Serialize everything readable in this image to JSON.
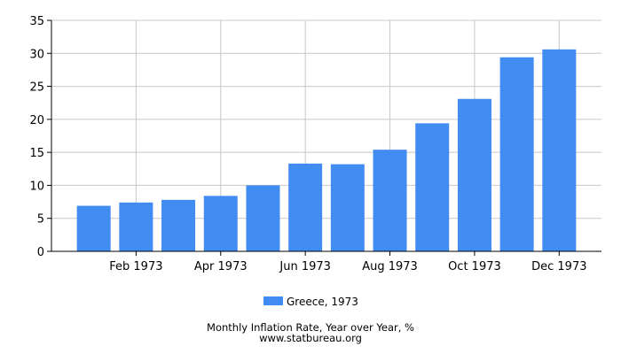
{
  "chart_data": {
    "type": "bar",
    "categories": [
      "Jan 1973",
      "Feb 1973",
      "Mar 1973",
      "Apr 1973",
      "May 1973",
      "Jun 1973",
      "Jul 1973",
      "Aug 1973",
      "Sep 1973",
      "Oct 1973",
      "Nov 1973",
      "Dec 1973"
    ],
    "x_tick_labels": [
      "Feb 1973",
      "Apr 1973",
      "Jun 1973",
      "Aug 1973",
      "Oct 1973",
      "Dec 1973"
    ],
    "series": [
      {
        "name": "Greece, 1973",
        "values": [
          6.9,
          7.4,
          7.8,
          8.4,
          10.0,
          13.3,
          13.2,
          15.4,
          19.4,
          23.1,
          29.4,
          30.6
        ]
      }
    ],
    "ylim": [
      0,
      35
    ],
    "yticks": [
      0,
      5,
      10,
      15,
      20,
      25,
      30,
      35
    ],
    "grid": true,
    "legend_position": "bottom",
    "title": "Monthly Inflation Rate, Year over Year, %",
    "source": "www.statbureau.org",
    "bar_color": "#418cf0"
  }
}
